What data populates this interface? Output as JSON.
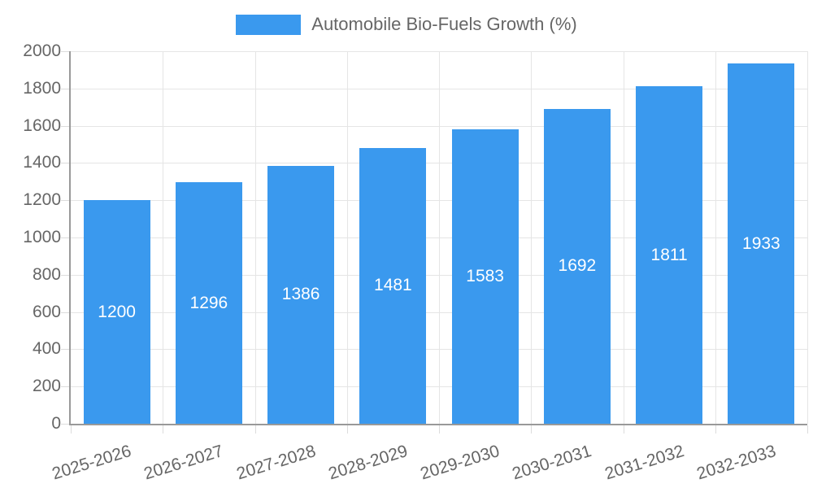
{
  "chart_data": {
    "type": "bar",
    "title": "Automobile Bio-Fuels Growth (%)",
    "categories": [
      "2025-2026",
      "2026-2027",
      "2027-2028",
      "2028-2029",
      "2029-2030",
      "2030-2031",
      "2031-2032",
      "2032-2033"
    ],
    "values": [
      1200,
      1296,
      1386,
      1481,
      1583,
      1692,
      1811,
      1933
    ],
    "xlabel": "",
    "ylabel": "",
    "ylim": [
      0,
      2000
    ],
    "ytick_step": 200,
    "ytick_labels": [
      "0",
      "200",
      "400",
      "600",
      "800",
      "1000",
      "1200",
      "1400",
      "1600",
      "1800",
      "2000"
    ],
    "grid": true,
    "legend_position": "top-center",
    "value_labels": "inside-center",
    "xlabel_rotation_deg": -17
  },
  "legend": {
    "label": "Automobile Bio-Fuels Growth (%)"
  },
  "colors": {
    "bar": "#3a99ee",
    "axis_text": "#666666",
    "legend_text": "#666666",
    "value_text": "#ffffff",
    "grid_line": "#e5e5e5",
    "tick_line": "#dcdcdc",
    "axis_line": "#999999",
    "background": "#ffffff"
  }
}
